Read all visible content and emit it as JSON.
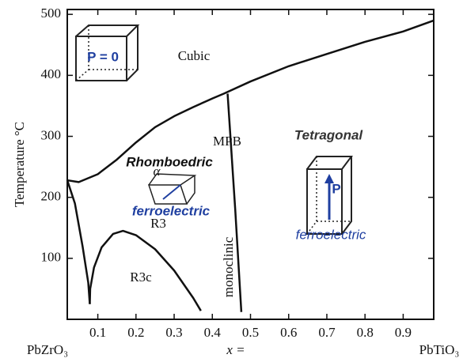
{
  "chart_data": {
    "type": "line",
    "ylabel": "Temperature °C",
    "xlabel": "x =",
    "xlim": [
      0.02,
      0.98
    ],
    "ylim": [
      0,
      508
    ],
    "xticks": [
      0.1,
      0.2,
      0.3,
      0.4,
      0.5,
      0.6,
      0.7,
      0.8,
      0.9
    ],
    "yticks": [
      100,
      200,
      300,
      400,
      500
    ],
    "series": [
      {
        "color": "#111111",
        "x": [
          0.02,
          0.05,
          0.1,
          0.15,
          0.2,
          0.25,
          0.3,
          0.35,
          0.4,
          0.43,
          0.5,
          0.6,
          0.7,
          0.8,
          0.9,
          0.98
        ],
        "values": [
          228,
          225,
          238,
          262,
          290,
          315,
          333,
          348,
          362,
          370,
          390,
          415,
          435,
          455,
          472,
          490
        ]
      },
      {
        "color": "#111111",
        "x": [
          0.44,
          0.46,
          0.476
        ],
        "values": [
          370,
          180,
          12
        ]
      },
      {
        "color": "#111111",
        "x": [
          0.079,
          0.08,
          0.09,
          0.11,
          0.14,
          0.166,
          0.2,
          0.25,
          0.3,
          0.35,
          0.37
        ],
        "values": [
          25,
          50,
          85,
          118,
          140,
          145,
          138,
          115,
          80,
          35,
          14
        ]
      },
      {
        "color": "#111111",
        "x": [
          0.02,
          0.04,
          0.06,
          0.075,
          0.079
        ],
        "values": [
          228,
          190,
          120,
          60,
          25
        ]
      }
    ],
    "annotations": [
      "Cubic",
      "MPB",
      "Tetragonal",
      "Rhomboedric",
      "α",
      "ferroelectric",
      "R3",
      "R3c",
      "monoclinic",
      "P = 0",
      "P",
      "ferroelectric",
      "PbZrO₃",
      "PbTiO₃"
    ]
  }
}
